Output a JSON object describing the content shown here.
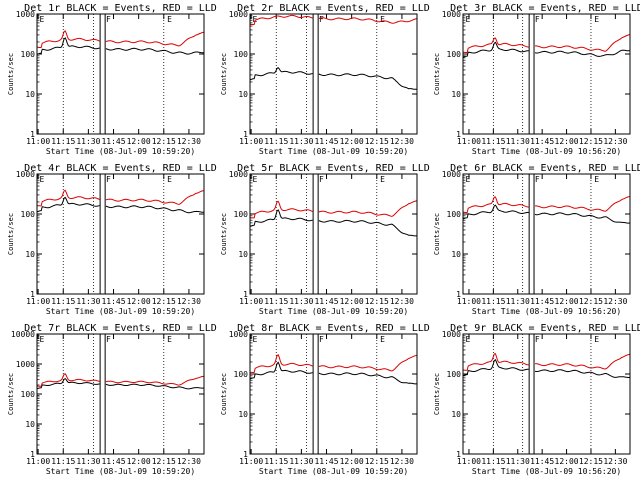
{
  "chart_data": [
    {
      "type": "line",
      "title": "Det 1r BLACK = Events, RED = LLD",
      "ylabel": "Counts/sec",
      "xlabel": "Start Time (08-Jul-09 10:59:20)",
      "x_tick_labels": [
        "11:00",
        "11:15",
        "11:30",
        "11:45",
        "12:00",
        "12:15",
        "12:30"
      ],
      "y_tick_labels": [
        "1",
        "10",
        "100",
        "1000"
      ],
      "ylim": [
        1,
        1000
      ],
      "yscale": "log",
      "xlim": [
        "10:59:20",
        "12:39:00"
      ],
      "markers": [
        "E",
        "F",
        "E"
      ],
      "series": [
        {
          "name": "Events",
          "color": "#000000",
          "baseline": 130,
          "spike": 1.8,
          "end_drop": 0.95
        },
        {
          "name": "LLD",
          "color": "#dd0000",
          "baseline": 200,
          "spike": 1.6,
          "end_drop": 1.8
        }
      ]
    },
    {
      "type": "line",
      "title": "Det 2r BLACK = Events, RED = LLD",
      "ylabel": "Counts/sec",
      "xlabel": "Start Time (08-Jul-09 10:59:20)",
      "x_tick_labels": [
        "11:00",
        "11:15",
        "11:30",
        "11:45",
        "12:00",
        "12:15",
        "12:30"
      ],
      "y_tick_labels": [
        "1",
        "10",
        "100",
        "1000"
      ],
      "ylim": [
        1,
        1000
      ],
      "yscale": "log",
      "xlim": [
        "10:59:20",
        "12:39:00"
      ],
      "markers": [
        "E",
        "F",
        "E"
      ],
      "series": [
        {
          "name": "Events",
          "color": "#000000",
          "baseline": 30,
          "spike": 1.4,
          "end_drop": 0.5
        },
        {
          "name": "LLD",
          "color": "#dd0000",
          "baseline": 750,
          "spike": 1.0,
          "end_drop": 1.05
        }
      ]
    },
    {
      "type": "line",
      "title": "Det 3r BLACK = Events, RED = LLD",
      "ylabel": "Counts/sec",
      "xlabel": "Start Time (08-Jul-09 10:56:20)",
      "x_tick_labels": [
        "11:00",
        "11:15",
        "11:30",
        "11:45",
        "12:00",
        "12:15",
        "12:30"
      ],
      "y_tick_labels": [
        "1",
        "10",
        "100",
        "1000"
      ],
      "ylim": [
        1,
        1000
      ],
      "yscale": "log",
      "xlim": [
        "10:56:20",
        "12:39:00"
      ],
      "markers": [
        "E",
        "F",
        "E"
      ],
      "series": [
        {
          "name": "Events",
          "color": "#000000",
          "baseline": 110,
          "spike": 1.5,
          "end_drop": 1.2
        },
        {
          "name": "LLD",
          "color": "#dd0000",
          "baseline": 150,
          "spike": 1.5,
          "end_drop": 2.0
        }
      ]
    },
    {
      "type": "line",
      "title": "Det 4r BLACK = Events, RED = LLD",
      "ylabel": "Counts/sec",
      "xlabel": "Start Time (08-Jul-09 10:59:20)",
      "x_tick_labels": [
        "11:00",
        "11:15",
        "11:30",
        "11:45",
        "12:00",
        "12:15",
        "12:30"
      ],
      "y_tick_labels": [
        "1",
        "10",
        "100",
        "1000"
      ],
      "ylim": [
        1,
        1000
      ],
      "yscale": "log",
      "xlim": [
        "10:59:20",
        "12:39:00"
      ],
      "markers": [
        "E",
        "F",
        "E"
      ],
      "series": [
        {
          "name": "Events",
          "color": "#000000",
          "baseline": 150,
          "spike": 1.6,
          "end_drop": 0.85
        },
        {
          "name": "LLD",
          "color": "#dd0000",
          "baseline": 220,
          "spike": 1.5,
          "end_drop": 1.8
        }
      ]
    },
    {
      "type": "line",
      "title": "Det 5r BLACK = Events, RED = LLD",
      "ylabel": "Counts/sec",
      "xlabel": "Start Time (08-Jul-09 10:59:20)",
      "x_tick_labels": [
        "11:00",
        "11:15",
        "11:30",
        "11:45",
        "12:00",
        "12:15",
        "12:30"
      ],
      "y_tick_labels": [
        "1",
        "10",
        "100",
        "1000"
      ],
      "ylim": [
        1,
        1000
      ],
      "yscale": "log",
      "xlim": [
        "10:59:20",
        "12:39:00"
      ],
      "markers": [
        "E",
        "F",
        "E"
      ],
      "series": [
        {
          "name": "Events",
          "color": "#000000",
          "baseline": 65,
          "spike": 1.8,
          "end_drop": 0.5
        },
        {
          "name": "LLD",
          "color": "#dd0000",
          "baseline": 110,
          "spike": 1.6,
          "end_drop": 2.0
        }
      ]
    },
    {
      "type": "line",
      "title": "Det 6r BLACK = Events, RED = LLD",
      "ylabel": "Counts/sec",
      "xlabel": "Start Time (08-Jul-09 10:56:20)",
      "x_tick_labels": [
        "11:00",
        "11:15",
        "11:30",
        "11:45",
        "12:00",
        "12:15",
        "12:30"
      ],
      "y_tick_labels": [
        "1",
        "10",
        "100",
        "1000"
      ],
      "ylim": [
        1,
        1000
      ],
      "yscale": "log",
      "xlim": [
        "10:56:20",
        "12:39:00"
      ],
      "markers": [
        "E",
        "F",
        "E"
      ],
      "series": [
        {
          "name": "Events",
          "color": "#000000",
          "baseline": 100,
          "spike": 1.4,
          "end_drop": 0.65
        },
        {
          "name": "LLD",
          "color": "#dd0000",
          "baseline": 150,
          "spike": 1.6,
          "end_drop": 1.8
        }
      ]
    },
    {
      "type": "line",
      "title": "Det 7r BLACK = Events, RED = LLD",
      "ylabel": "Counts/sec",
      "xlabel": "Start Time (08-Jul-09 10:59:20)",
      "x_tick_labels": [
        "11:00",
        "11:15",
        "11:30",
        "11:45",
        "12:00",
        "12:15",
        "12:30"
      ],
      "y_tick_labels": [
        "1",
        "10",
        "100",
        "1000",
        "10000"
      ],
      "ylim": [
        1,
        10000
      ],
      "yscale": "log",
      "xlim": [
        "10:59:20",
        "12:39:00"
      ],
      "markers": [
        "E",
        "F",
        "E"
      ],
      "series": [
        {
          "name": "Events",
          "color": "#000000",
          "baseline": 200,
          "spike": 1.5,
          "end_drop": 0.9
        },
        {
          "name": "LLD",
          "color": "#dd0000",
          "baseline": 250,
          "spike": 1.6,
          "end_drop": 1.6
        }
      ]
    },
    {
      "type": "line",
      "title": "Det 8r BLACK = Events, RED = LLD",
      "ylabel": "Counts/sec",
      "xlabel": "Start Time (08-Jul-09 10:59:20)",
      "x_tick_labels": [
        "11:00",
        "11:15",
        "11:30",
        "11:45",
        "12:00",
        "12:15",
        "12:30"
      ],
      "y_tick_labels": [
        "1",
        "10",
        "100",
        "1000"
      ],
      "ylim": [
        1,
        1000
      ],
      "yscale": "log",
      "xlim": [
        "10:59:20",
        "12:39:00"
      ],
      "markers": [
        "E",
        "F",
        "E"
      ],
      "series": [
        {
          "name": "Events",
          "color": "#000000",
          "baseline": 100,
          "spike": 1.8,
          "end_drop": 0.65
        },
        {
          "name": "LLD",
          "color": "#dd0000",
          "baseline": 150,
          "spike": 1.7,
          "end_drop": 2.0
        }
      ]
    },
    {
      "type": "line",
      "title": "Det 9r BLACK = Events, RED = LLD",
      "ylabel": "Counts/sec",
      "xlabel": "Start Time (08-Jul-09 10:56:20)",
      "x_tick_labels": [
        "11:00",
        "11:15",
        "11:30",
        "11:45",
        "12:00",
        "12:15",
        "12:30"
      ],
      "y_tick_labels": [
        "1",
        "10",
        "100",
        "1000"
      ],
      "ylim": [
        1,
        1000
      ],
      "yscale": "log",
      "xlim": [
        "10:56:20",
        "12:39:00"
      ],
      "markers": [
        "E",
        "F",
        "E"
      ],
      "series": [
        {
          "name": "Events",
          "color": "#000000",
          "baseline": 120,
          "spike": 1.6,
          "end_drop": 0.75
        },
        {
          "name": "LLD",
          "color": "#dd0000",
          "baseline": 170,
          "spike": 1.7,
          "end_drop": 1.8
        }
      ]
    }
  ]
}
